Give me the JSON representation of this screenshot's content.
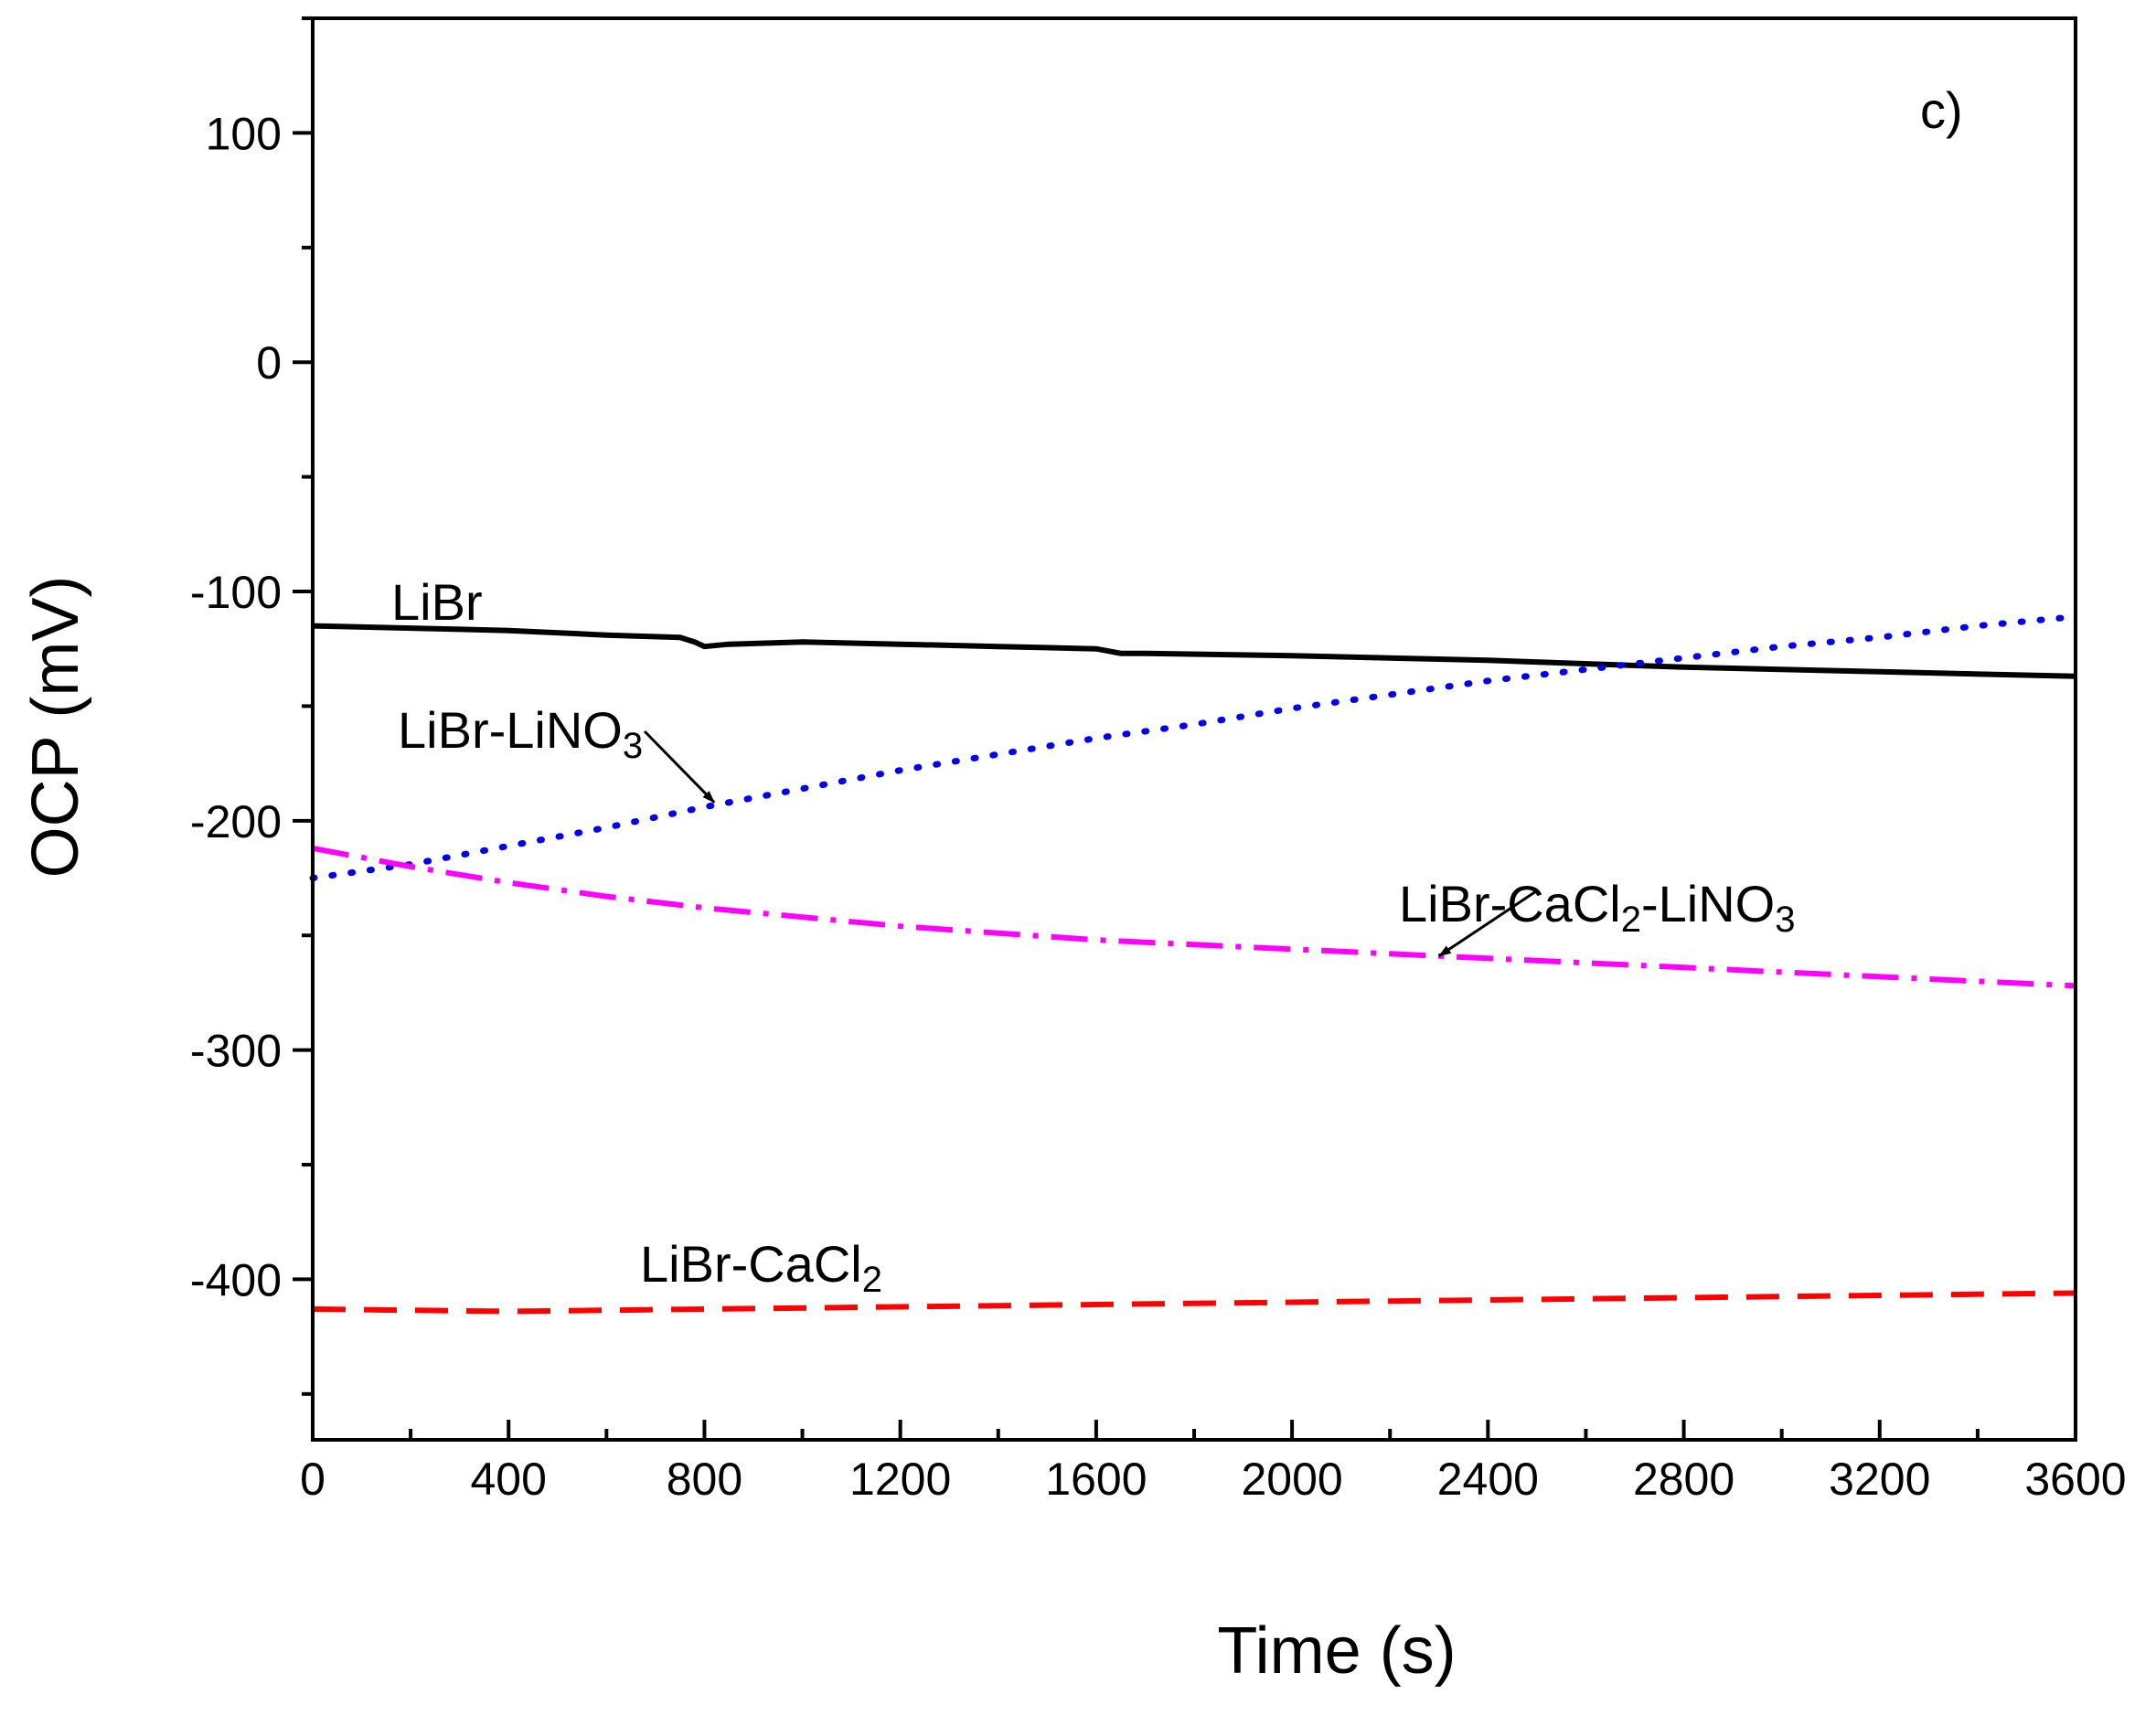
{
  "chart_data": {
    "type": "line",
    "panel_label": "c)",
    "xlabel": "Time (s)",
    "ylabel": "OCP (mV)",
    "xlim": [
      0,
      3600
    ],
    "ylim": [
      -470,
      150
    ],
    "x_ticks": [
      0,
      400,
      800,
      1200,
      1600,
      2000,
      2400,
      2800,
      3200,
      3600
    ],
    "y_ticks": [
      100,
      0,
      -100,
      -200,
      -300,
      -400
    ],
    "x_tick_labels": [
      "0",
      "400",
      "800",
      "1200",
      "1600",
      "2000",
      "2400",
      "2800",
      "3200",
      "3600"
    ],
    "y_tick_labels": [
      "100",
      "0",
      "-100",
      "-200",
      "-300",
      "-400"
    ],
    "series": [
      {
        "name": "LiBr",
        "color": "#000000",
        "style": "solid",
        "x": [
          0,
          200,
          400,
          600,
          750,
          780,
          800,
          850,
          1000,
          1200,
          1400,
          1600,
          1650,
          1700,
          2000,
          2400,
          2800,
          3200,
          3600
        ],
        "y": [
          -115,
          -116,
          -117,
          -119,
          -120,
          -122,
          -124,
          -123,
          -122,
          -123,
          -124,
          -125,
          -127,
          -127,
          -128,
          -130,
          -133,
          -135,
          -137
        ]
      },
      {
        "name": "LiBr-LiNO3",
        "color": "#0000ee",
        "style": "dotted",
        "x": [
          0,
          200,
          400,
          600,
          800,
          1000,
          1200,
          1400,
          1600,
          1800,
          2000,
          2200,
          2400,
          2600,
          2800,
          3000,
          3200,
          3400,
          3600
        ],
        "y": [
          -225,
          -219,
          -211,
          -203,
          -194,
          -186,
          -178,
          -171,
          -164,
          -158,
          -151,
          -145,
          -139,
          -134,
          -129,
          -124,
          -120,
          -115,
          -111
        ]
      },
      {
        "name": "LiBr-CaCl2-LiNO3",
        "color": "#ff00ff",
        "style": "dashdot",
        "x": [
          0,
          200,
          400,
          600,
          800,
          1000,
          1200,
          1400,
          1600,
          1800,
          2000,
          2200,
          2400,
          2600,
          2800,
          3000,
          3200,
          3400,
          3600
        ],
        "y": [
          -212,
          -220,
          -227,
          -233,
          -238,
          -242,
          -246,
          -249,
          -252,
          -254,
          -256,
          -258,
          -260,
          -262,
          -264,
          -266,
          -268,
          -270,
          -272
        ]
      },
      {
        "name": "LiBr-CaCl2",
        "color": "#ff0000",
        "style": "dashed",
        "x": [
          0,
          400,
          800,
          1200,
          1600,
          2000,
          2400,
          2800,
          3200,
          3600
        ],
        "y": [
          -413,
          -414,
          -413,
          -412,
          -411,
          -410,
          -409,
          -408,
          -407,
          -406
        ]
      }
    ],
    "annotations": [
      {
        "series": "LiBr",
        "text": "LiBr",
        "label_parts": [
          [
            "LiBr",
            ""
          ]
        ],
        "arrow": false
      },
      {
        "series": "LiBr-LiNO3",
        "text": "LiBr-LiNO3",
        "label_parts": [
          [
            "LiBr-LiNO",
            ""
          ],
          [
            "3",
            "sub"
          ]
        ],
        "arrow": true,
        "arrow_to_x": 820,
        "arrow_to_y": -192
      },
      {
        "series": "LiBr-CaCl2-LiNO3",
        "text": "LiBr-CaCl2-LiNO3",
        "label_parts": [
          [
            "LiBr-CaCl",
            ""
          ],
          [
            "2",
            "sub"
          ],
          [
            "-LiNO",
            ""
          ],
          [
            "3",
            "sub"
          ]
        ],
        "arrow": true,
        "arrow_to_x": 2300,
        "arrow_to_y": -259
      },
      {
        "series": "LiBr-CaCl2",
        "text": "LiBr-CaCl2",
        "label_parts": [
          [
            "LiBr-CaCl",
            ""
          ],
          [
            "2",
            "sub"
          ]
        ],
        "arrow": false
      }
    ]
  }
}
